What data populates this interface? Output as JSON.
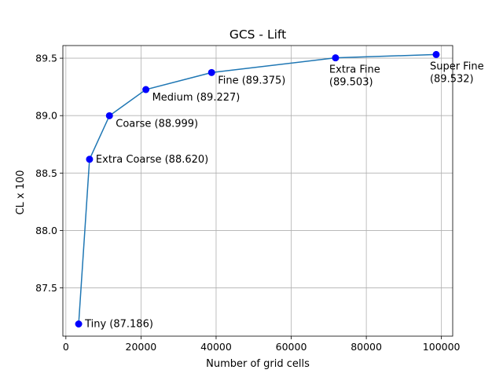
{
  "chart_data": {
    "type": "line",
    "title": "GCS - Lift",
    "xlabel": "Number of grid cells",
    "ylabel": "CL x 100",
    "xlim": [
      -800,
      103000
    ],
    "ylim": [
      87.08,
      89.61
    ],
    "xticks": [
      0,
      20000,
      40000,
      60000,
      80000,
      100000
    ],
    "yticks": [
      87.5,
      88.0,
      88.5,
      89.0,
      89.5
    ],
    "xtick_labels": [
      "0",
      "20000",
      "40000",
      "60000",
      "80000",
      "100000"
    ],
    "ytick_labels": [
      "87.5",
      "88.0",
      "88.5",
      "89.0",
      "89.5"
    ],
    "grid": true,
    "line_color": "#1f77b4",
    "marker_color": "#0000ff",
    "series": [
      {
        "points": [
          {
            "x": 3400,
            "y": 87.186,
            "label": [
              "Tiny (87.186)"
            ]
          },
          {
            "x": 6300,
            "y": 88.62,
            "label": [
              "Extra Coarse (88.620)"
            ]
          },
          {
            "x": 11600,
            "y": 88.999,
            "label": [
              "Coarse (88.999)"
            ]
          },
          {
            "x": 21300,
            "y": 89.227,
            "label": [
              "Medium (89.227)"
            ]
          },
          {
            "x": 38800,
            "y": 89.375,
            "label": [
              "Fine (89.375)"
            ]
          },
          {
            "x": 71800,
            "y": 89.503,
            "label": [
              "Extra Fine",
              "(89.503)"
            ]
          },
          {
            "x": 98600,
            "y": 89.532,
            "label": [
              "Super Fine",
              "(89.532)"
            ]
          }
        ]
      }
    ]
  }
}
